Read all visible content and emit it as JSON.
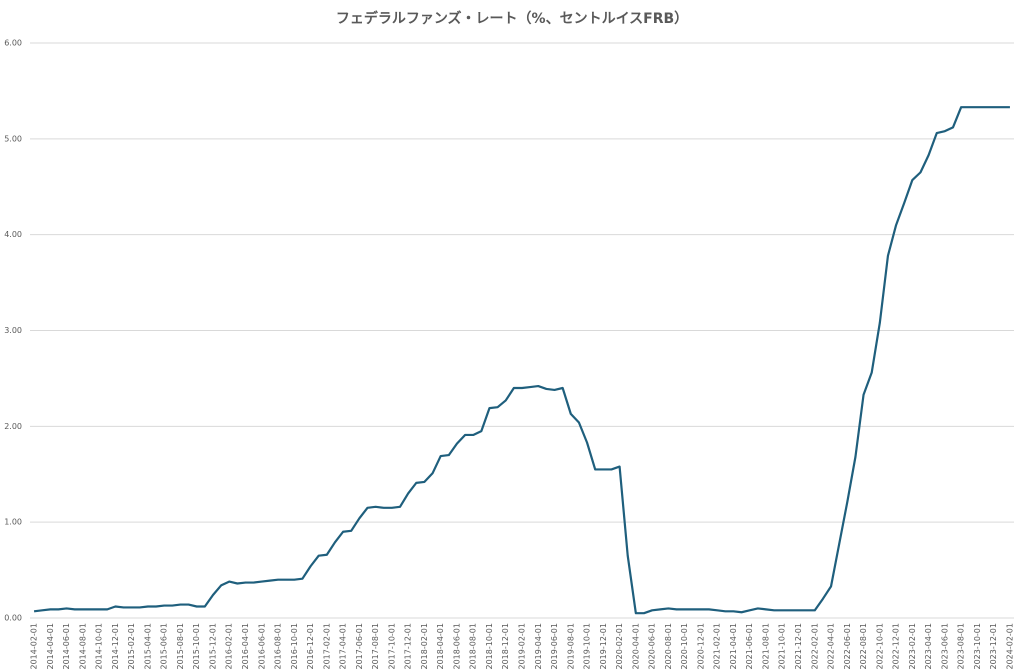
{
  "chart_data": {
    "type": "line",
    "title": "フェデラルファンズ・レート（%、セントルイスFRB）",
    "categories": [
      "2014-02-01",
      null,
      "2014-04-01",
      null,
      "2014-06-01",
      null,
      "2014-08-01",
      null,
      "2014-10-01",
      null,
      "2014-12-01",
      null,
      "2015-02-01",
      null,
      "2015-04-01",
      null,
      "2015-06-01",
      null,
      "2015-08-01",
      null,
      "2015-10-01",
      null,
      "2015-12-01",
      null,
      "2016-02-01",
      null,
      "2016-04-01",
      null,
      "2016-06-01",
      null,
      "2016-08-01",
      null,
      "2016-10-01",
      null,
      "2016-12-01",
      null,
      "2017-02-01",
      null,
      "2017-04-01",
      null,
      "2017-06-01",
      null,
      "2017-08-01",
      null,
      "2017-10-01",
      null,
      "2017-12-01",
      null,
      "2018-02-01",
      null,
      "2018-04-01",
      null,
      "2018-06-01",
      null,
      "2018-08-01",
      null,
      "2018-10-01",
      null,
      "2018-12-01",
      null,
      "2019-02-01",
      null,
      "2019-04-01",
      null,
      "2019-06-01",
      null,
      "2019-08-01",
      null,
      "2019-10-01",
      null,
      "2019-12-01",
      null,
      "2020-02-01",
      null,
      "2020-04-01",
      null,
      "2020-06-01",
      null,
      "2020-08-01",
      null,
      "2020-10-01",
      null,
      "2020-12-01",
      null,
      "2021-02-01",
      null,
      "2021-04-01",
      null,
      "2021-06-01",
      null,
      "2021-08-01",
      null,
      "2021-10-01",
      null,
      "2021-12-01",
      null,
      "2022-02-01",
      null,
      "2022-04-01",
      null,
      "2022-06-01",
      null,
      "2022-08-01",
      null,
      "2022-10-01",
      null,
      "2022-12-01",
      null,
      "2023-02-01",
      null,
      "2023-04-01",
      null,
      "2023-06-01",
      null,
      "2023-08-01",
      null,
      "2023-10-01",
      null,
      "2023-12-01",
      null,
      "2024-02-01"
    ],
    "values": [
      0.07,
      0.08,
      0.09,
      0.09,
      0.1,
      0.09,
      0.09,
      0.09,
      0.09,
      0.09,
      0.12,
      0.11,
      0.11,
      0.11,
      0.12,
      0.12,
      0.13,
      0.13,
      0.14,
      0.14,
      0.12,
      0.12,
      0.24,
      0.34,
      0.38,
      0.36,
      0.37,
      0.37,
      0.38,
      0.39,
      0.4,
      0.4,
      0.4,
      0.41,
      0.54,
      0.65,
      0.66,
      0.79,
      0.9,
      0.91,
      1.04,
      1.15,
      1.16,
      1.15,
      1.15,
      1.16,
      1.3,
      1.41,
      1.42,
      1.51,
      1.69,
      1.7,
      1.82,
      1.91,
      1.91,
      1.95,
      2.19,
      2.2,
      2.27,
      2.4,
      2.4,
      2.41,
      2.42,
      2.39,
      2.38,
      2.4,
      2.13,
      2.04,
      1.83,
      1.55,
      1.55,
      1.55,
      1.58,
      0.65,
      0.05,
      0.05,
      0.08,
      0.09,
      0.1,
      0.09,
      0.09,
      0.09,
      0.09,
      0.09,
      0.08,
      0.07,
      0.07,
      0.06,
      0.08,
      0.1,
      0.09,
      0.08,
      0.08,
      0.08,
      0.08,
      0.08,
      0.08,
      0.2,
      0.33,
      0.77,
      1.21,
      1.68,
      2.33,
      2.56,
      3.08,
      3.78,
      4.1,
      4.33,
      4.57,
      4.65,
      4.83,
      5.06,
      5.08,
      5.12,
      5.33,
      5.33,
      5.33,
      5.33,
      5.33,
      5.33,
      5.33
    ],
    "color": "#1f5f7d",
    "ylim": [
      0,
      6
    ],
    "yticks": [
      {
        "value": 0,
        "label": "0.00"
      },
      {
        "value": 1,
        "label": "1.00"
      },
      {
        "value": 2,
        "label": "2.00"
      },
      {
        "value": 3,
        "label": "3.00"
      },
      {
        "value": 4,
        "label": "4.00"
      },
      {
        "value": 5,
        "label": "5.00"
      },
      {
        "value": 6,
        "label": "6.00"
      }
    ],
    "grid": true
  }
}
